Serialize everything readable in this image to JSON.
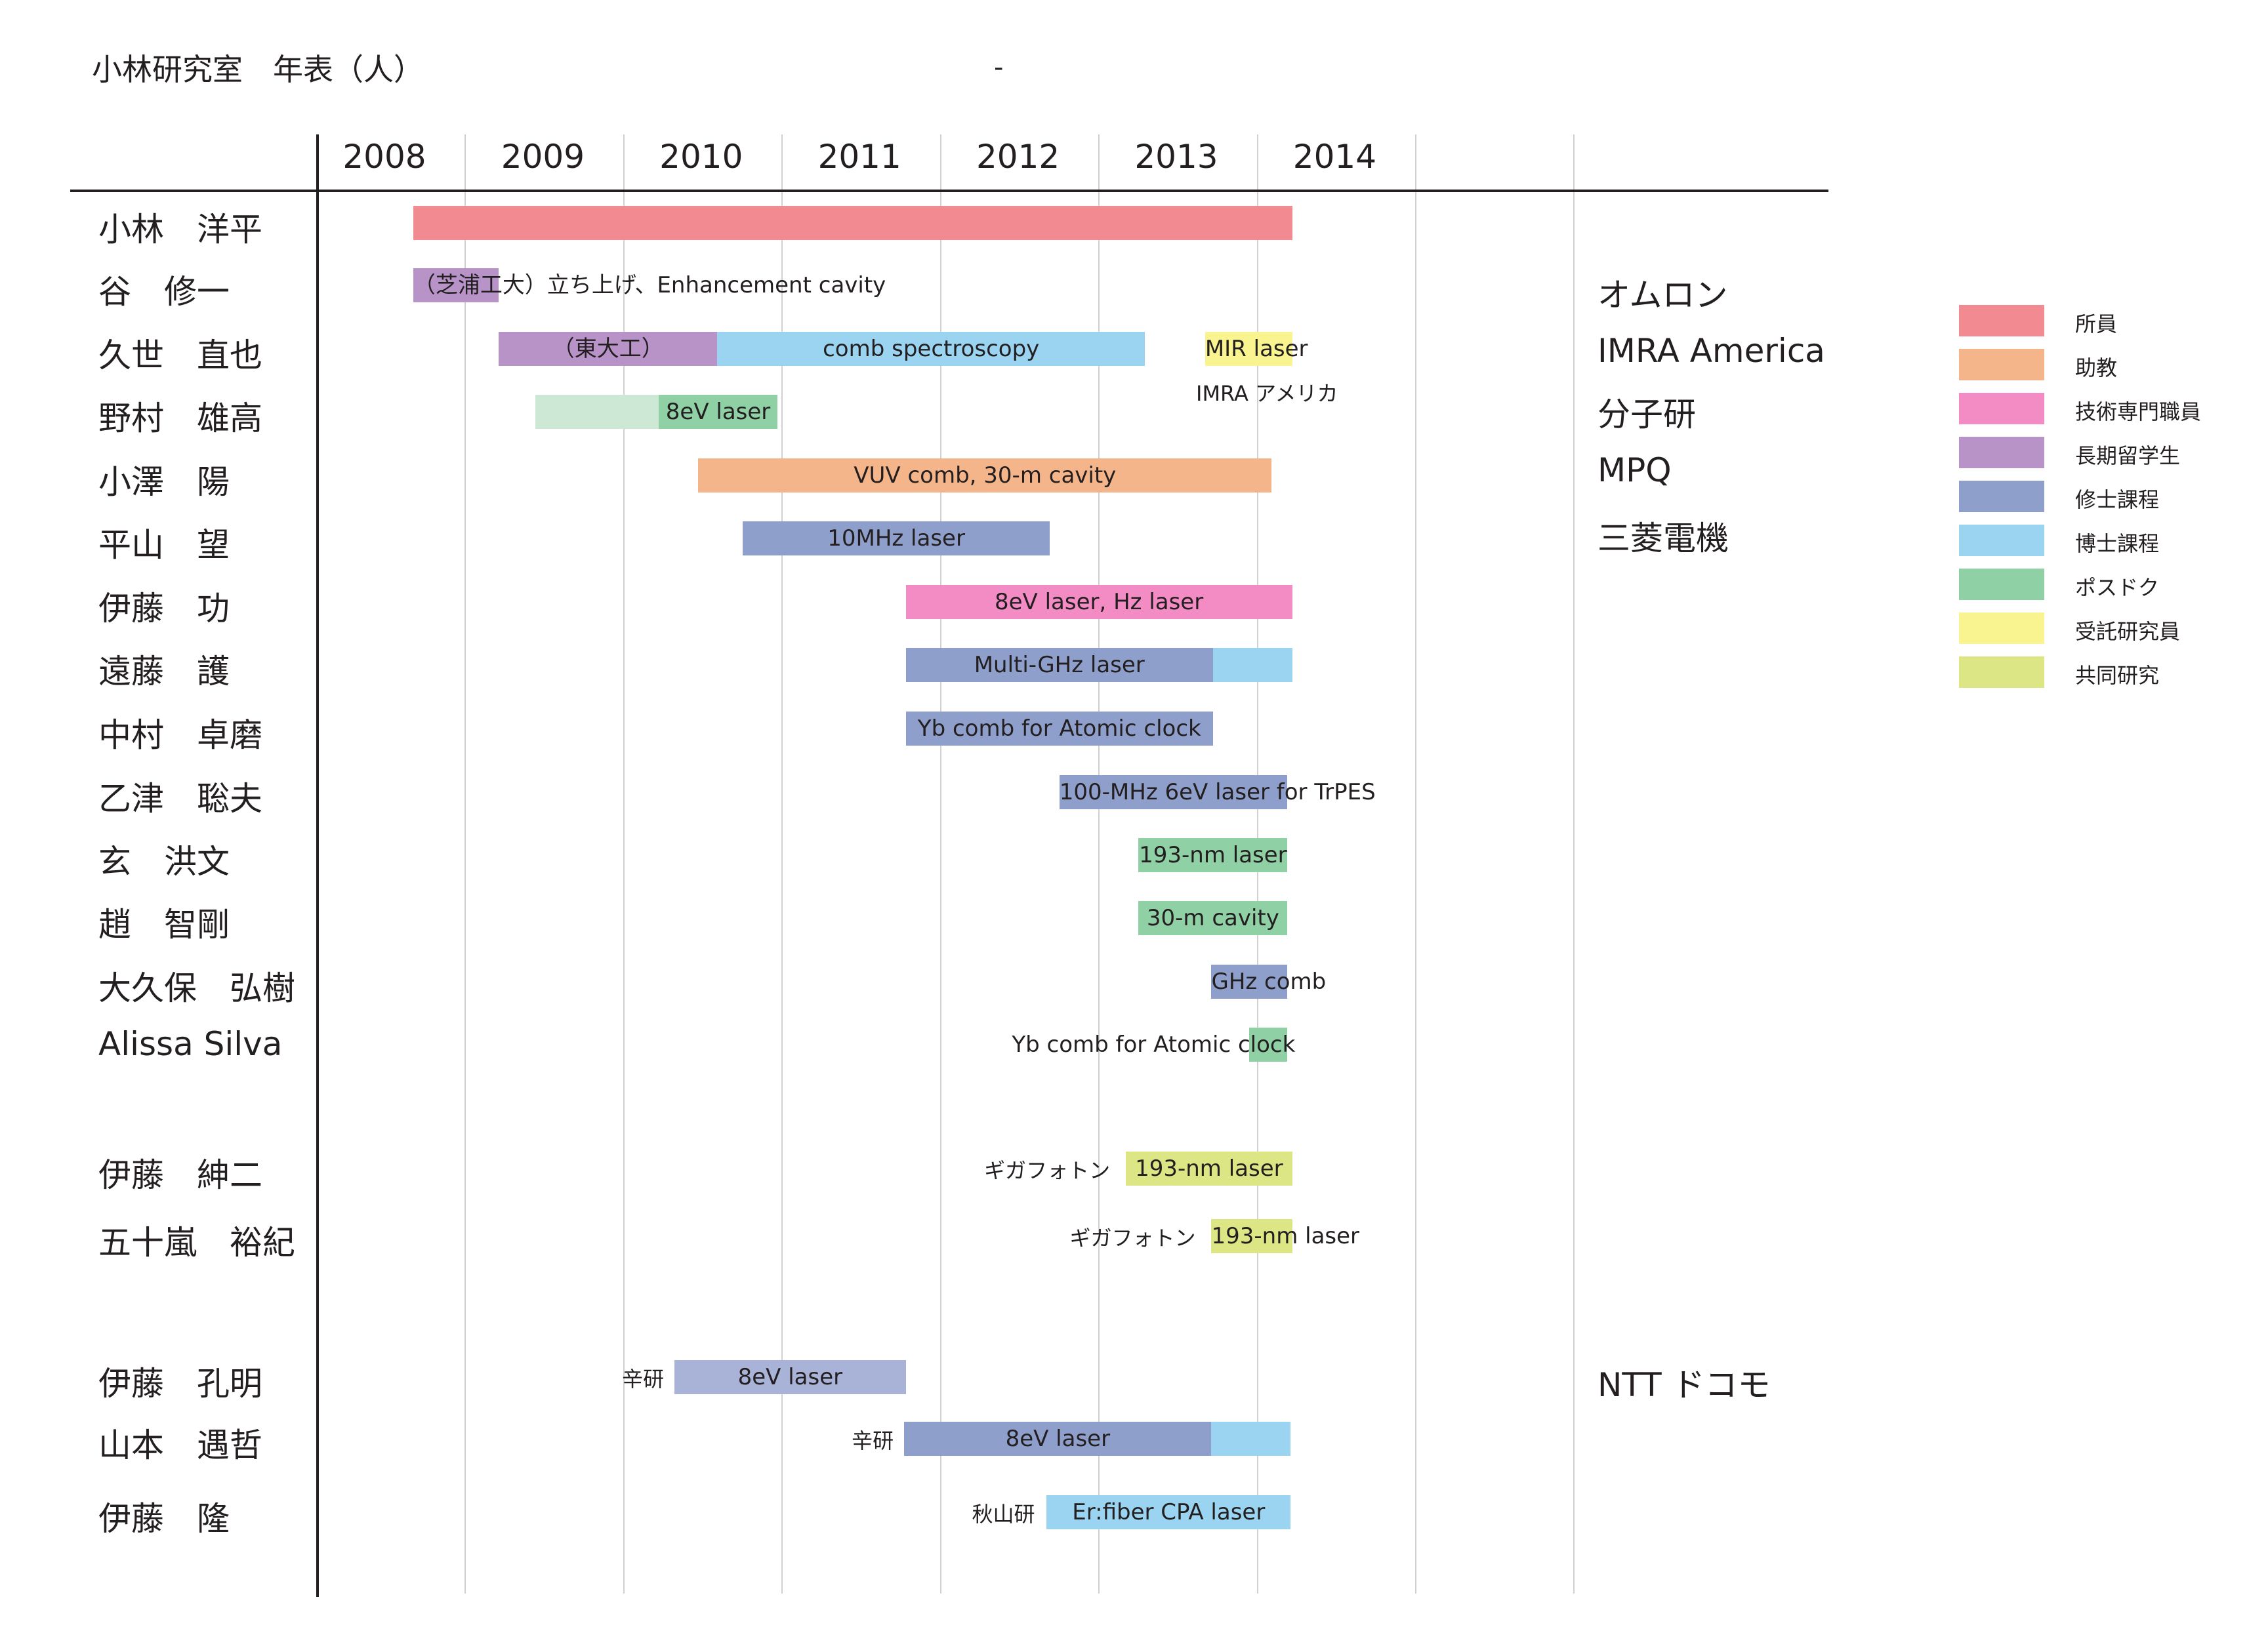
{
  "title": "小林研究室　年表（人）",
  "dash": "-",
  "chart_data": {
    "type": "gantt",
    "years": [
      "2008",
      "2009",
      "2010",
      "2011",
      "2012",
      "2013",
      "2014"
    ],
    "people": [
      {
        "name": "小林　洋平",
        "org": "",
        "bars": [
          {
            "start": 2008.2,
            "end": 2013.75,
            "category": "所員",
            "label": ""
          }
        ]
      },
      {
        "name": "谷　修一",
        "org": "オムロン",
        "bars": [
          {
            "start": 2008.2,
            "end": 2008.74,
            "category": "長期留学生",
            "label": "（芝浦工大）立ち上げ、Enhancement cavity"
          }
        ]
      },
      {
        "name": "久世　直也",
        "org": "IMRA America",
        "bars": [
          {
            "start": 2008.74,
            "end": 2010.12,
            "category": "長期留学生",
            "label": "（東大工）"
          },
          {
            "start": 2010.12,
            "end": 2012.82,
            "category": "博士課程",
            "label": "comb spectroscopy"
          },
          {
            "start": 2013.2,
            "end": 2013.75,
            "category": "受託研究員",
            "label": "MIR laser"
          }
        ]
      },
      {
        "name": "野村　雄高",
        "org": "分子研",
        "bars": [
          {
            "start": 2008.97,
            "end": 2009.75,
            "category": "ポスドク (light)",
            "label": ""
          },
          {
            "start": 2009.75,
            "end": 2010.5,
            "category": "ポスドク",
            "label": "8eV laser"
          }
        ]
      },
      {
        "name": "小澤　陽",
        "org": "MPQ",
        "bars": [
          {
            "start": 2010.0,
            "end": 2013.62,
            "category": "助教",
            "label": "VUV comb, 30-m cavity"
          }
        ]
      },
      {
        "name": "平山　望",
        "org": "三菱電機",
        "bars": [
          {
            "start": 2010.28,
            "end": 2012.22,
            "category": "修士課程",
            "label": "10MHz laser"
          }
        ]
      },
      {
        "name": "伊藤　功",
        "org": "",
        "bars": [
          {
            "start": 2011.31,
            "end": 2013.75,
            "category": "技術専門職員",
            "label": "8eV laser, Hz laser"
          }
        ]
      },
      {
        "name": "遠藤　護",
        "org": "",
        "bars": [
          {
            "start": 2011.31,
            "end": 2013.25,
            "category": "修士課程",
            "label": "Multi-GHz laser"
          },
          {
            "start": 2013.25,
            "end": 2013.75,
            "category": "博士課程",
            "label": ""
          }
        ]
      },
      {
        "name": "中村　卓磨",
        "org": "",
        "bars": [
          {
            "start": 2011.31,
            "end": 2013.25,
            "category": "修士課程",
            "label": "Yb comb for Atomic clock"
          }
        ]
      },
      {
        "name": "乙津　聡夫",
        "org": "",
        "bars": [
          {
            "start": 2012.28,
            "end": 2013.72,
            "category": "修士課程",
            "label": "100-MHz 6eV laser for TrPES"
          }
        ]
      },
      {
        "name": "玄　洪文",
        "org": "",
        "bars": [
          {
            "start": 2012.78,
            "end": 2013.72,
            "category": "ポスドク",
            "label": "193-nm laser"
          }
        ]
      },
      {
        "name": "趙　智剛",
        "org": "",
        "bars": [
          {
            "start": 2012.78,
            "end": 2013.72,
            "category": "ポスドク",
            "label": "30-m cavity"
          }
        ]
      },
      {
        "name": "大久保　弘樹",
        "org": "",
        "bars": [
          {
            "start": 2013.24,
            "end": 2013.72,
            "category": "修士課程",
            "label": "GHz comb"
          }
        ]
      },
      {
        "name": "Alissa Silva",
        "org": "",
        "bars": [
          {
            "start": 2013.48,
            "end": 2013.72,
            "category": "ポスドク",
            "label": "Yb comb for Atomic clock"
          }
        ]
      },
      {
        "name": "伊藤　紳二",
        "org": "",
        "bars": [
          {
            "start": 2012.7,
            "end": 2013.75,
            "category": "共同研究",
            "label": "193-nm laser",
            "note": "ギガフォトン"
          }
        ]
      },
      {
        "name": "五十嵐　裕紀",
        "org": "",
        "bars": [
          {
            "start": 2013.24,
            "end": 2013.75,
            "category": "共同研究",
            "label": "193-nm laser",
            "note": "ギガフォトン"
          }
        ]
      },
      {
        "name": "伊藤　孔明",
        "org": "NTT ドコモ",
        "bars": [
          {
            "start": 2009.85,
            "end": 2011.31,
            "category": "修士課程 (light)",
            "label": "8eV laser",
            "note": "辛研"
          }
        ]
      },
      {
        "name": "山本　遇哲",
        "org": "",
        "bars": [
          {
            "start": 2011.3,
            "end": 2013.24,
            "category": "修士課程",
            "label": "8eV laser",
            "note": "辛研"
          },
          {
            "start": 2013.24,
            "end": 2013.74,
            "category": "博士課程",
            "label": ""
          }
        ]
      },
      {
        "name": "伊藤　隆",
        "org": "",
        "bars": [
          {
            "start": 2012.2,
            "end": 2013.74,
            "category": "博士課程",
            "label": "Er:fiber CPA laser",
            "note": "秋山研"
          }
        ]
      }
    ],
    "legend": [
      {
        "label": "所員",
        "color": "#f28b91"
      },
      {
        "label": "助教",
        "color": "#f5b58a"
      },
      {
        "label": "技術専門職員",
        "color": "#f38cc4"
      },
      {
        "label": "長期留学生",
        "color": "#b793c8"
      },
      {
        "label": "修士課程",
        "color": "#8f9fcb"
      },
      {
        "label": "博士課程",
        "color": "#9ad4f0"
      },
      {
        "label": "ポスドク",
        "color": "#8fd0a5"
      },
      {
        "label": "受託研究員",
        "color": "#f9f48f"
      },
      {
        "label": "共同研究",
        "color": "#dce685"
      }
    ],
    "category_colors": {
      "所員": "#f28b91",
      "助教": "#f5b58a",
      "技術専門職員": "#f38cc4",
      "長期留学生": "#b793c8",
      "修士課程": "#8f9fcb",
      "修士課程 (light)": "#a9b3d8",
      "博士課程": "#9ad4f0",
      "ポスドク": "#8fd0a5",
      "ポスドク (light)": "#cde9d6",
      "受託研究員": "#f9f48f",
      "共同研究": "#dce685"
    }
  }
}
